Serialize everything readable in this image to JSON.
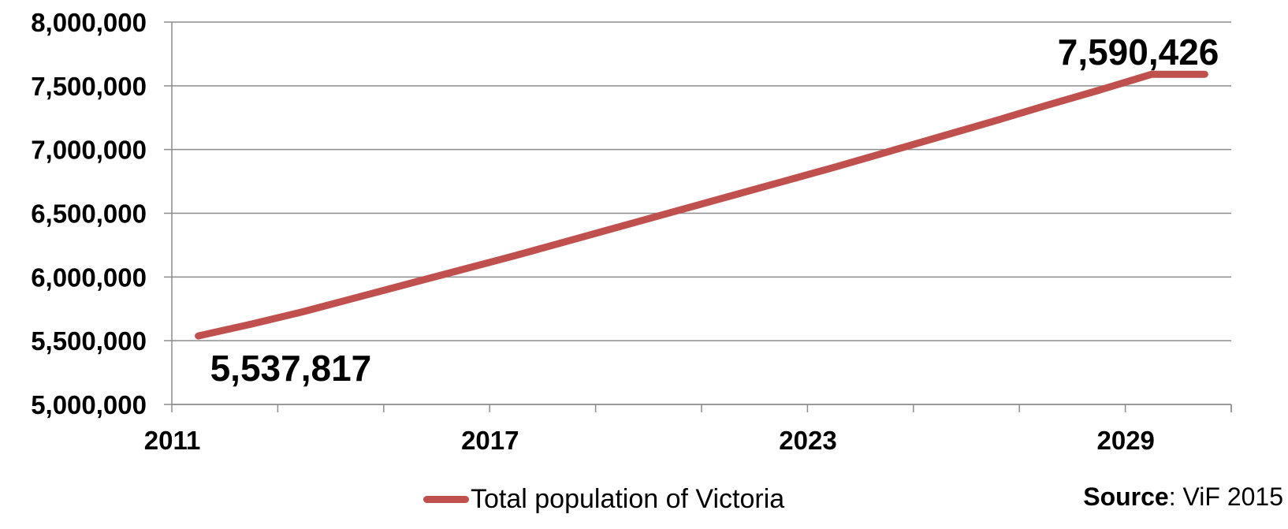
{
  "chart_data": {
    "type": "line",
    "x": [
      2011,
      2012,
      2013,
      2014,
      2015,
      2016,
      2017,
      2018,
      2019,
      2020,
      2021,
      2022,
      2023,
      2024,
      2025,
      2026,
      2027,
      2028,
      2029,
      2030
    ],
    "series": [
      {
        "name": "Total population of Victoria",
        "color": "#c0504d",
        "values": [
          5537817,
          5630000,
          5730000,
          5840000,
          5950000,
          6060000,
          6170000,
          6285000,
          6400000,
          6515000,
          6630000,
          6745000,
          6860000,
          6980000,
          7100000,
          7220000,
          7345000,
          7465000,
          7590426,
          7590426
        ]
      }
    ],
    "x_tick_labels": [
      "2011",
      "2017",
      "2023",
      "2029"
    ],
    "y_tick_labels": [
      "5,000,000",
      "5,500,000",
      "6,000,000",
      "6,500,000",
      "7,000,000",
      "7,500,000",
      "8,000,000"
    ],
    "ylim": [
      5000000,
      8000000
    ],
    "data_labels": [
      {
        "x": 2011,
        "text": "5,537,817",
        "position": "below"
      },
      {
        "x": 2030,
        "text": "7,590,426",
        "position": "above"
      }
    ],
    "grid": true,
    "legend_position": "bottom"
  },
  "legend": {
    "label": "Total population of Victoria"
  },
  "source": {
    "label": "Source",
    "text": ": ViF 2015"
  }
}
